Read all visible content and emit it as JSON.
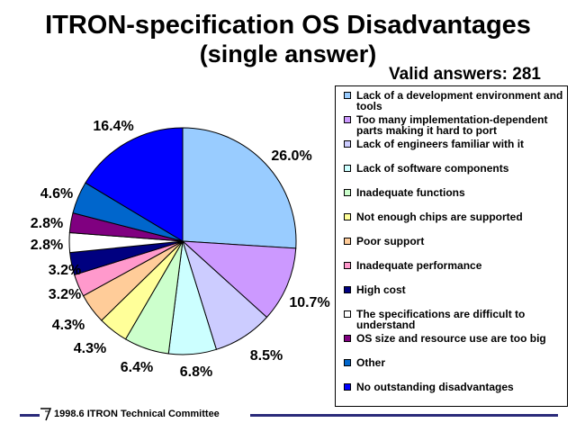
{
  "chart_data": {
    "type": "pie",
    "title": "ITRON-specification OS Disadvantages",
    "subtitle": "(single answer)",
    "valid_answers": "Valid answers: 281",
    "slices": [
      {
        "label": "Lack of a development environment and tools",
        "value": 26.0,
        "pct_label": "26.0%",
        "color": "#99ccff"
      },
      {
        "label": "Too many implementation-dependent parts making it hard to port",
        "value": 10.7,
        "pct_label": "10.7%",
        "color": "#cc99ff"
      },
      {
        "label": "Lack of engineers familiar with it",
        "value": 8.5,
        "pct_label": "8.5%",
        "color": "#ccccff"
      },
      {
        "label": "Lack of software components",
        "value": 6.8,
        "pct_label": "6.8%",
        "color": "#ccffff"
      },
      {
        "label": "Inadequate functions",
        "value": 6.4,
        "pct_label": "6.4%",
        "color": "#ccffcc"
      },
      {
        "label": "Not enough chips are supported",
        "value": 4.3,
        "pct_label": "4.3%",
        "color": "#ffff99"
      },
      {
        "label": "Poor support",
        "value": 4.3,
        "pct_label": "4.3%",
        "color": "#ffcc99"
      },
      {
        "label": "Inadequate performance",
        "value": 3.2,
        "pct_label": "3.2%",
        "color": "#ff99cc"
      },
      {
        "label": "High cost",
        "value": 3.2,
        "pct_label": "3.2%",
        "color": "#000080"
      },
      {
        "label": "The specifications are difficult to understand",
        "value": 2.8,
        "pct_label": "2.8%",
        "color": "#ffffff"
      },
      {
        "label": "OS size and resource use are too big",
        "value": 2.8,
        "pct_label": "2.8%",
        "color": "#800080"
      },
      {
        "label": "Other",
        "value": 4.6,
        "pct_label": "4.6%",
        "color": "#0066cc"
      },
      {
        "label": "No outstanding disadvantages",
        "value": 16.4,
        "pct_label": "16.4%",
        "color": "#0000ff"
      }
    ],
    "legend_position": "right"
  },
  "footer": {
    "text": "1998.6  ITRON Technical Committee"
  }
}
